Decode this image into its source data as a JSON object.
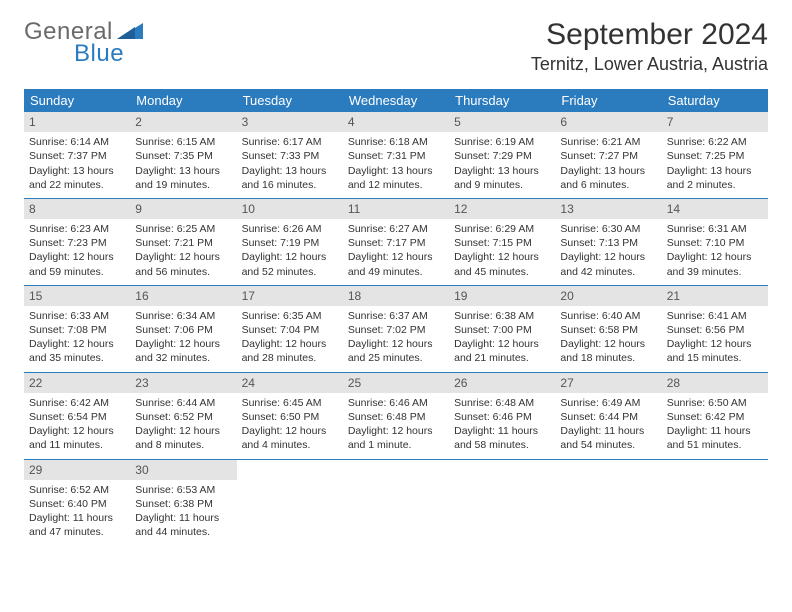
{
  "logo": {
    "general": "General",
    "blue": "Blue"
  },
  "title": "September 2024",
  "location": "Ternitz, Lower Austria, Austria",
  "header_bg": "#2b7bbf",
  "day_bg": "#e4e4e4",
  "text_color": "#333333",
  "font_size_body": 10.5,
  "font_size_title": 30,
  "columns": [
    "Sunday",
    "Monday",
    "Tuesday",
    "Wednesday",
    "Thursday",
    "Friday",
    "Saturday"
  ],
  "weeks": [
    [
      {
        "d": "1",
        "sr": "Sunrise: 6:14 AM",
        "ss": "Sunset: 7:37 PM",
        "dl1": "Daylight: 13 hours",
        "dl2": "and 22 minutes."
      },
      {
        "d": "2",
        "sr": "Sunrise: 6:15 AM",
        "ss": "Sunset: 7:35 PM",
        "dl1": "Daylight: 13 hours",
        "dl2": "and 19 minutes."
      },
      {
        "d": "3",
        "sr": "Sunrise: 6:17 AM",
        "ss": "Sunset: 7:33 PM",
        "dl1": "Daylight: 13 hours",
        "dl2": "and 16 minutes."
      },
      {
        "d": "4",
        "sr": "Sunrise: 6:18 AM",
        "ss": "Sunset: 7:31 PM",
        "dl1": "Daylight: 13 hours",
        "dl2": "and 12 minutes."
      },
      {
        "d": "5",
        "sr": "Sunrise: 6:19 AM",
        "ss": "Sunset: 7:29 PM",
        "dl1": "Daylight: 13 hours",
        "dl2": "and 9 minutes."
      },
      {
        "d": "6",
        "sr": "Sunrise: 6:21 AM",
        "ss": "Sunset: 7:27 PM",
        "dl1": "Daylight: 13 hours",
        "dl2": "and 6 minutes."
      },
      {
        "d": "7",
        "sr": "Sunrise: 6:22 AM",
        "ss": "Sunset: 7:25 PM",
        "dl1": "Daylight: 13 hours",
        "dl2": "and 2 minutes."
      }
    ],
    [
      {
        "d": "8",
        "sr": "Sunrise: 6:23 AM",
        "ss": "Sunset: 7:23 PM",
        "dl1": "Daylight: 12 hours",
        "dl2": "and 59 minutes."
      },
      {
        "d": "9",
        "sr": "Sunrise: 6:25 AM",
        "ss": "Sunset: 7:21 PM",
        "dl1": "Daylight: 12 hours",
        "dl2": "and 56 minutes."
      },
      {
        "d": "10",
        "sr": "Sunrise: 6:26 AM",
        "ss": "Sunset: 7:19 PM",
        "dl1": "Daylight: 12 hours",
        "dl2": "and 52 minutes."
      },
      {
        "d": "11",
        "sr": "Sunrise: 6:27 AM",
        "ss": "Sunset: 7:17 PM",
        "dl1": "Daylight: 12 hours",
        "dl2": "and 49 minutes."
      },
      {
        "d": "12",
        "sr": "Sunrise: 6:29 AM",
        "ss": "Sunset: 7:15 PM",
        "dl1": "Daylight: 12 hours",
        "dl2": "and 45 minutes."
      },
      {
        "d": "13",
        "sr": "Sunrise: 6:30 AM",
        "ss": "Sunset: 7:13 PM",
        "dl1": "Daylight: 12 hours",
        "dl2": "and 42 minutes."
      },
      {
        "d": "14",
        "sr": "Sunrise: 6:31 AM",
        "ss": "Sunset: 7:10 PM",
        "dl1": "Daylight: 12 hours",
        "dl2": "and 39 minutes."
      }
    ],
    [
      {
        "d": "15",
        "sr": "Sunrise: 6:33 AM",
        "ss": "Sunset: 7:08 PM",
        "dl1": "Daylight: 12 hours",
        "dl2": "and 35 minutes."
      },
      {
        "d": "16",
        "sr": "Sunrise: 6:34 AM",
        "ss": "Sunset: 7:06 PM",
        "dl1": "Daylight: 12 hours",
        "dl2": "and 32 minutes."
      },
      {
        "d": "17",
        "sr": "Sunrise: 6:35 AM",
        "ss": "Sunset: 7:04 PM",
        "dl1": "Daylight: 12 hours",
        "dl2": "and 28 minutes."
      },
      {
        "d": "18",
        "sr": "Sunrise: 6:37 AM",
        "ss": "Sunset: 7:02 PM",
        "dl1": "Daylight: 12 hours",
        "dl2": "and 25 minutes."
      },
      {
        "d": "19",
        "sr": "Sunrise: 6:38 AM",
        "ss": "Sunset: 7:00 PM",
        "dl1": "Daylight: 12 hours",
        "dl2": "and 21 minutes."
      },
      {
        "d": "20",
        "sr": "Sunrise: 6:40 AM",
        "ss": "Sunset: 6:58 PM",
        "dl1": "Daylight: 12 hours",
        "dl2": "and 18 minutes."
      },
      {
        "d": "21",
        "sr": "Sunrise: 6:41 AM",
        "ss": "Sunset: 6:56 PM",
        "dl1": "Daylight: 12 hours",
        "dl2": "and 15 minutes."
      }
    ],
    [
      {
        "d": "22",
        "sr": "Sunrise: 6:42 AM",
        "ss": "Sunset: 6:54 PM",
        "dl1": "Daylight: 12 hours",
        "dl2": "and 11 minutes."
      },
      {
        "d": "23",
        "sr": "Sunrise: 6:44 AM",
        "ss": "Sunset: 6:52 PM",
        "dl1": "Daylight: 12 hours",
        "dl2": "and 8 minutes."
      },
      {
        "d": "24",
        "sr": "Sunrise: 6:45 AM",
        "ss": "Sunset: 6:50 PM",
        "dl1": "Daylight: 12 hours",
        "dl2": "and 4 minutes."
      },
      {
        "d": "25",
        "sr": "Sunrise: 6:46 AM",
        "ss": "Sunset: 6:48 PM",
        "dl1": "Daylight: 12 hours",
        "dl2": "and 1 minute."
      },
      {
        "d": "26",
        "sr": "Sunrise: 6:48 AM",
        "ss": "Sunset: 6:46 PM",
        "dl1": "Daylight: 11 hours",
        "dl2": "and 58 minutes."
      },
      {
        "d": "27",
        "sr": "Sunrise: 6:49 AM",
        "ss": "Sunset: 6:44 PM",
        "dl1": "Daylight: 11 hours",
        "dl2": "and 54 minutes."
      },
      {
        "d": "28",
        "sr": "Sunrise: 6:50 AM",
        "ss": "Sunset: 6:42 PM",
        "dl1": "Daylight: 11 hours",
        "dl2": "and 51 minutes."
      }
    ],
    [
      {
        "d": "29",
        "sr": "Sunrise: 6:52 AM",
        "ss": "Sunset: 6:40 PM",
        "dl1": "Daylight: 11 hours",
        "dl2": "and 47 minutes."
      },
      {
        "d": "30",
        "sr": "Sunrise: 6:53 AM",
        "ss": "Sunset: 6:38 PM",
        "dl1": "Daylight: 11 hours",
        "dl2": "and 44 minutes."
      },
      null,
      null,
      null,
      null,
      null
    ]
  ]
}
